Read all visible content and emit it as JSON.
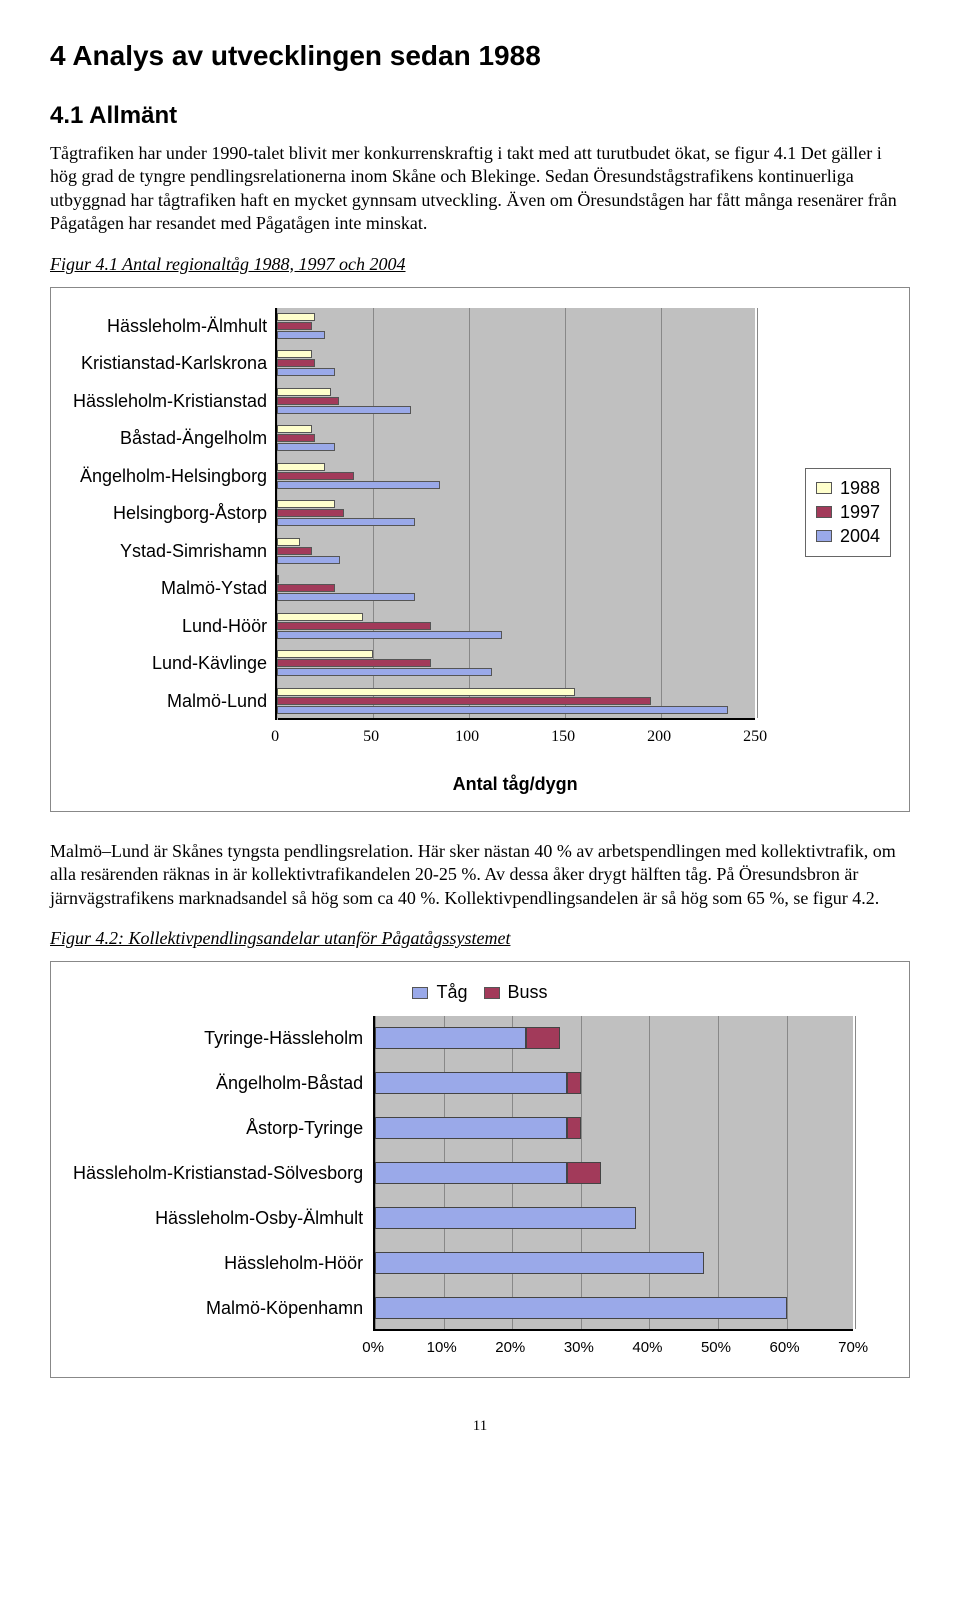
{
  "headings": {
    "h1": "4  Analys av utvecklingen sedan 1988",
    "h2": "4.1  Allmänt"
  },
  "paragraphs": {
    "p1": "Tågtrafiken har under 1990-talet blivit mer konkurrenskraftig i takt med att turutbudet ökat, se figur 4.1 Det gäller i hög grad de tyngre pendlingsrelationerna inom Skåne och Blekinge. Sedan Öresundstågstrafikens kontinuerliga utbyggnad har tågtrafiken haft en mycket gynnsam utveckling. Även om Öresundstågen har fått många resenärer från Pågatågen har resandet med Pågatågen inte minskat.",
    "p2": "Malmö–Lund är Skånes tyngsta pendlingsrelation. Här sker nästan 40 % av arbetspendlingen med kollektivtrafik, om alla resärenden räknas in är kollektivtrafikandelen 20-25 %. Av dessa åker drygt hälften tåg. På Öresundsbron är järnvägstrafikens marknadsandel så hög som ca 40 %. Kollektivpendlingsandelen är så hög som 65 %, se figur 4.2."
  },
  "figcaps": {
    "f1": "Figur 4.1 Antal regionaltåg 1988, 1997 och 2004",
    "f2": "Figur 4.2: Kollektivpendlingsandelar utanför Pågatågssystemet"
  },
  "chart1": {
    "type": "bar-grouped-horizontal",
    "xmax": 250,
    "ticks": [
      0,
      50,
      100,
      150,
      200,
      250
    ],
    "xlabel": "Antal tåg/dygn",
    "plot_bg": "#c0c0c0",
    "grid_color": "#888888",
    "series": [
      {
        "label": "1988",
        "color": "#ffffcc"
      },
      {
        "label": "1997",
        "color": "#a23a5a"
      },
      {
        "label": "2004",
        "color": "#9aa9e9"
      }
    ],
    "categories": [
      {
        "name": "Hässleholm-Älmhult",
        "v": [
          20,
          18,
          25
        ]
      },
      {
        "name": "Kristianstad-Karlskrona",
        "v": [
          18,
          20,
          30
        ]
      },
      {
        "name": "Hässleholm-Kristianstad",
        "v": [
          28,
          32,
          70
        ]
      },
      {
        "name": "Båstad-Ängelholm",
        "v": [
          18,
          20,
          30
        ]
      },
      {
        "name": "Ängelholm-Helsingborg",
        "v": [
          25,
          40,
          85
        ]
      },
      {
        "name": "Helsingborg-Åstorp",
        "v": [
          30,
          35,
          72
        ]
      },
      {
        "name": "Ystad-Simrishamn",
        "v": [
          12,
          18,
          33
        ]
      },
      {
        "name": "Malmö-Ystad",
        "v": [
          0,
          30,
          72
        ]
      },
      {
        "name": "Lund-Höör",
        "v": [
          45,
          80,
          117
        ]
      },
      {
        "name": "Lund-Kävlinge",
        "v": [
          50,
          80,
          112
        ]
      },
      {
        "name": "Malmö-Lund",
        "v": [
          155,
          195,
          235
        ]
      }
    ]
  },
  "chart2": {
    "type": "bar-stacked-horizontal",
    "xmax": 70,
    "ticks": [
      0,
      10,
      20,
      30,
      40,
      50,
      60,
      70
    ],
    "tick_labels": [
      "0%",
      "10%",
      "20%",
      "30%",
      "40%",
      "50%",
      "60%",
      "70%"
    ],
    "plot_bg": "#c0c0c0",
    "grid_color": "#888888",
    "series": [
      {
        "label": "Tåg",
        "color": "#9aa9e9"
      },
      {
        "label": "Buss",
        "color": "#a23a5a"
      }
    ],
    "categories": [
      {
        "name": "Tyringe-Hässleholm",
        "v": [
          22,
          5
        ]
      },
      {
        "name": "Ängelholm-Båstad",
        "v": [
          28,
          2
        ]
      },
      {
        "name": "Åstorp-Tyringe",
        "v": [
          28,
          2
        ]
      },
      {
        "name": "Hässleholm-Kristianstad-Sölvesborg",
        "v": [
          28,
          5
        ]
      },
      {
        "name": "Hässleholm-Osby-Älmhult",
        "v": [
          38,
          0
        ]
      },
      {
        "name": "Hässleholm-Höör",
        "v": [
          48,
          0
        ]
      },
      {
        "name": "Malmö-Köpenhamn",
        "v": [
          60,
          0
        ]
      }
    ]
  },
  "page_number": "11"
}
